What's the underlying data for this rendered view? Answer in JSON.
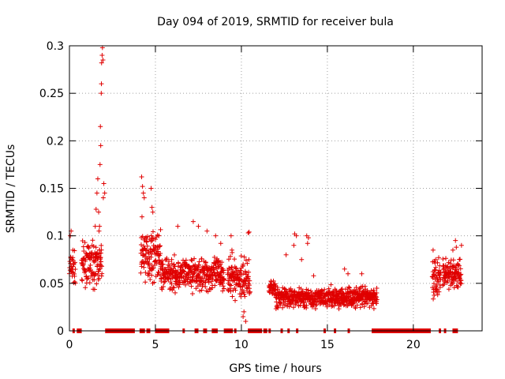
{
  "chart_data": {
    "type": "scatter",
    "title": "Day 094 of 2019, SRMTID for receiver bula",
    "xlabel": "GPS time / hours",
    "ylabel": "SRMTID / TECUs",
    "xlim": [
      0,
      24
    ],
    "ylim": [
      0,
      0.3
    ],
    "xticks": [
      0,
      5,
      10,
      15,
      20
    ],
    "yticks": [
      0,
      0.05,
      0.1,
      0.15,
      0.2,
      0.25,
      0.3
    ],
    "grid": true,
    "marker": "+",
    "marker_color": "#e00000",
    "series": [
      {
        "name": "SRMTID",
        "segments": [
          {
            "start": 0.0,
            "end": 0.35,
            "base": 0.065,
            "spread": 0.025,
            "step": 0.012
          },
          {
            "start": 0.7,
            "end": 1.9,
            "base": 0.07,
            "spread": 0.03,
            "step": 0.01
          },
          {
            "start": 4.15,
            "end": 5.3,
            "base": 0.08,
            "spread": 0.035,
            "step": 0.01
          },
          {
            "start": 5.3,
            "end": 9.0,
            "base": 0.06,
            "spread": 0.025,
            "step": 0.01
          },
          {
            "start": 9.2,
            "end": 10.5,
            "base": 0.055,
            "spread": 0.03,
            "step": 0.01
          },
          {
            "start": 11.6,
            "end": 12.0,
            "base": 0.045,
            "spread": 0.015,
            "step": 0.012
          },
          {
            "start": 12.0,
            "end": 17.9,
            "base": 0.035,
            "spread": 0.015,
            "step": 0.01
          },
          {
            "start": 21.1,
            "end": 21.6,
            "base": 0.055,
            "spread": 0.03,
            "step": 0.01
          },
          {
            "start": 21.7,
            "end": 22.8,
            "base": 0.06,
            "spread": 0.025,
            "step": 0.01
          }
        ],
        "extra_points": [
          [
            0.05,
            0.1
          ],
          [
            0.1,
            0.105
          ],
          [
            0.2,
            0.085
          ],
          [
            1.5,
            0.11
          ],
          [
            1.55,
            0.128
          ],
          [
            1.6,
            0.145
          ],
          [
            1.65,
            0.16
          ],
          [
            1.7,
            0.125
          ],
          [
            1.72,
            0.105
          ],
          [
            1.75,
            0.11
          ],
          [
            1.78,
            0.175
          ],
          [
            1.8,
            0.215
          ],
          [
            1.82,
            0.195
          ],
          [
            1.85,
            0.25
          ],
          [
            1.86,
            0.26
          ],
          [
            1.87,
            0.282
          ],
          [
            1.9,
            0.29
          ],
          [
            1.92,
            0.298
          ],
          [
            1.95,
            0.285
          ],
          [
            1.97,
            0.14
          ],
          [
            2.0,
            0.155
          ],
          [
            2.05,
            0.145
          ],
          [
            4.2,
            0.162
          ],
          [
            4.25,
            0.152
          ],
          [
            4.3,
            0.145
          ],
          [
            4.35,
            0.14
          ],
          [
            4.22,
            0.12
          ],
          [
            4.75,
            0.15
          ],
          [
            4.8,
            0.13
          ],
          [
            4.85,
            0.125
          ],
          [
            5.2,
            0.1
          ],
          [
            6.3,
            0.11
          ],
          [
            7.2,
            0.115
          ],
          [
            7.5,
            0.11
          ],
          [
            8.0,
            0.105
          ],
          [
            8.5,
            0.1
          ],
          [
            8.8,
            0.092
          ],
          [
            9.4,
            0.1
          ],
          [
            9.45,
            0.085
          ],
          [
            10.4,
            0.103
          ],
          [
            10.45,
            0.104
          ],
          [
            10.1,
            0.015
          ],
          [
            10.15,
            0.02
          ],
          [
            10.25,
            0.01
          ],
          [
            12.6,
            0.08
          ],
          [
            13.1,
            0.102
          ],
          [
            13.2,
            0.1
          ],
          [
            13.05,
            0.09
          ],
          [
            13.8,
            0.1
          ],
          [
            13.9,
            0.098
          ],
          [
            13.85,
            0.092
          ],
          [
            13.5,
            0.075
          ],
          [
            14.2,
            0.058
          ],
          [
            16.0,
            0.065
          ],
          [
            16.2,
            0.06
          ],
          [
            17.0,
            0.06
          ],
          [
            22.45,
            0.095
          ],
          [
            22.5,
            0.088
          ],
          [
            22.8,
            0.09
          ],
          [
            21.15,
            0.085
          ],
          [
            21.3,
            0.075
          ],
          [
            22.3,
            0.085
          ]
        ],
        "zero_ranges": [
          [
            0.2,
            0.3
          ],
          [
            0.45,
            0.7
          ],
          [
            2.1,
            3.8
          ],
          [
            4.1,
            4.4
          ],
          [
            4.5,
            4.7
          ],
          [
            5.0,
            5.8
          ],
          [
            6.6,
            6.7
          ],
          [
            7.3,
            7.5
          ],
          [
            7.8,
            8.0
          ],
          [
            8.3,
            8.6
          ],
          [
            9.0,
            9.5
          ],
          [
            9.6,
            9.7
          ],
          [
            10.4,
            11.2
          ],
          [
            11.3,
            11.5
          ],
          [
            11.6,
            11.7
          ],
          [
            12.3,
            12.4
          ],
          [
            12.7,
            12.8
          ],
          [
            13.2,
            13.3
          ],
          [
            14.8,
            14.9
          ],
          [
            15.4,
            15.5
          ],
          [
            16.2,
            16.3
          ],
          [
            17.6,
            21.0
          ],
          [
            21.5,
            21.6
          ],
          [
            21.8,
            21.9
          ],
          [
            22.3,
            22.6
          ]
        ]
      }
    ]
  }
}
